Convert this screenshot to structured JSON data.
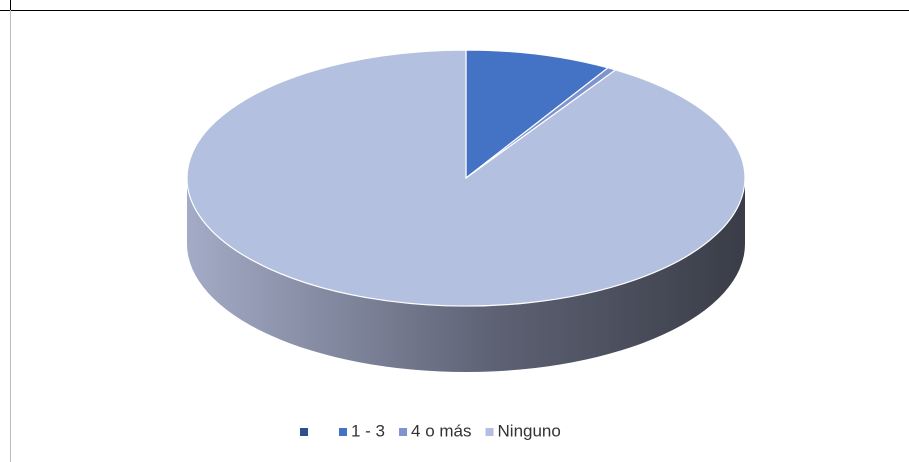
{
  "chart_data": {
    "type": "pie",
    "three_d": true,
    "categories": [
      null,
      "1 - 3",
      "4 o más",
      "Ninguno"
    ],
    "values": [
      0,
      8.5,
      0.5,
      91
    ],
    "colors": [
      "#2f4f8f",
      "#4472c4",
      "#7d95cc",
      "#b4c0df"
    ],
    "legend": "bottom"
  }
}
